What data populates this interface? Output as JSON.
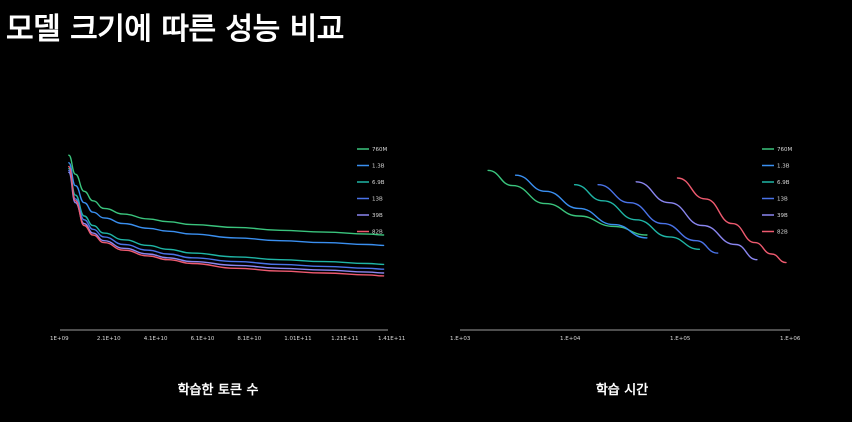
{
  "title": "모델 크기에 따른 성능 비교",
  "chart_data": [
    {
      "type": "line",
      "caption": "학습한 토큰 수",
      "xlabel": "학습한 토큰 수",
      "x_ticks": [
        "1E+09",
        "2.1E+10",
        "4.1E+10",
        "6.1E+10",
        "8.1E+10",
        "1.01E+11",
        "1.21E+11",
        "1.41E+11"
      ],
      "xlim": [
        1000000000,
        150000000000
      ],
      "x_scale": "linear",
      "legend_position": "right",
      "series": [
        {
          "name": "760M",
          "color": "#3ac47d",
          "x": [
            5000000000.0,
            8000000000.0,
            12000000000.0,
            16000000000.0,
            21000000000.0,
            30000000000.0,
            41000000000.0,
            50000000000.0,
            61000000000.0,
            81000000000.0,
            101000000000.0,
            121000000000.0,
            141000000000.0,
            148000000000.0
          ],
          "y": [
            0.92,
            0.82,
            0.73,
            0.68,
            0.64,
            0.61,
            0.585,
            0.57,
            0.555,
            0.54,
            0.525,
            0.515,
            0.505,
            0.5
          ]
        },
        {
          "name": "1.3B",
          "color": "#3a8ff0",
          "x": [
            5000000000.0,
            8000000000.0,
            12000000000.0,
            16000000000.0,
            21000000000.0,
            30000000000.0,
            41000000000.0,
            50000000000.0,
            61000000000.0,
            81000000000.0,
            101000000000.0,
            121000000000.0,
            141000000000.0,
            148000000000.0
          ],
          "y": [
            0.88,
            0.76,
            0.67,
            0.62,
            0.59,
            0.56,
            0.535,
            0.52,
            0.505,
            0.485,
            0.47,
            0.46,
            0.45,
            0.445
          ]
        },
        {
          "name": "6.9B",
          "color": "#1fb5a6",
          "x": [
            5000000000.0,
            8000000000.0,
            12000000000.0,
            16000000000.0,
            21000000000.0,
            30000000000.0,
            41000000000.0,
            50000000000.0,
            61000000000.0,
            81000000000.0,
            101000000000.0,
            121000000000.0,
            141000000000.0,
            148000000000.0
          ],
          "y": [
            0.85,
            0.71,
            0.6,
            0.55,
            0.51,
            0.475,
            0.445,
            0.425,
            0.405,
            0.385,
            0.37,
            0.36,
            0.35,
            0.345
          ]
        },
        {
          "name": "13B",
          "color": "#4a73e8",
          "x": [
            5000000000.0,
            8000000000.0,
            12000000000.0,
            16000000000.0,
            21000000000.0,
            30000000000.0,
            41000000000.0,
            50000000000.0,
            61000000000.0,
            81000000000.0,
            101000000000.0,
            121000000000.0,
            141000000000.0,
            148000000000.0
          ],
          "y": [
            0.84,
            0.69,
            0.58,
            0.53,
            0.49,
            0.45,
            0.42,
            0.4,
            0.38,
            0.36,
            0.345,
            0.335,
            0.325,
            0.32
          ]
        },
        {
          "name": "39B",
          "color": "#8a86f0",
          "x": [
            5000000000.0,
            8000000000.0,
            12000000000.0,
            16000000000.0,
            21000000000.0,
            30000000000.0,
            41000000000.0,
            50000000000.0,
            61000000000.0,
            81000000000.0,
            101000000000.0,
            121000000000.0,
            141000000000.0,
            148000000000.0
          ],
          "y": [
            0.83,
            0.67,
            0.56,
            0.51,
            0.47,
            0.43,
            0.4,
            0.38,
            0.36,
            0.34,
            0.325,
            0.315,
            0.305,
            0.3
          ]
        },
        {
          "name": "82B",
          "color": "#ee5a6f",
          "x": [
            5000000000.0,
            8000000000.0,
            12000000000.0,
            16000000000.0,
            21000000000.0,
            30000000000.0,
            41000000000.0,
            50000000000.0,
            61000000000.0,
            81000000000.0,
            101000000000.0,
            121000000000.0,
            141000000000.0,
            148000000000.0
          ],
          "y": [
            0.86,
            0.68,
            0.55,
            0.5,
            0.46,
            0.42,
            0.39,
            0.37,
            0.35,
            0.325,
            0.31,
            0.3,
            0.29,
            0.285
          ]
        }
      ]
    },
    {
      "type": "line",
      "caption": "학습 시간",
      "xlabel": "학습 시간",
      "x_ticks": [
        "1.E+03",
        "1.E+04",
        "1.E+05",
        "1.E+06"
      ],
      "xlim": [
        1000,
        1000000
      ],
      "x_scale": "log",
      "legend_position": "right",
      "series": [
        {
          "name": "760M",
          "color": "#3ac47d",
          "x": [
            1800,
            3000,
            6000,
            12000,
            25000,
            50000
          ],
          "y": [
            0.84,
            0.76,
            0.665,
            0.6,
            0.545,
            0.5
          ]
        },
        {
          "name": "1.3B",
          "color": "#3a8ff0",
          "x": [
            3200,
            6000,
            12000,
            25000,
            50000
          ],
          "y": [
            0.815,
            0.73,
            0.64,
            0.555,
            0.485
          ]
        },
        {
          "name": "6.9B",
          "color": "#1fb5a6",
          "x": [
            11000,
            20000,
            40000,
            80000,
            150000
          ],
          "y": [
            0.765,
            0.68,
            0.58,
            0.49,
            0.425
          ]
        },
        {
          "name": "13B",
          "color": "#4a73e8",
          "x": [
            18000,
            35000,
            70000,
            140000,
            220000
          ],
          "y": [
            0.765,
            0.67,
            0.56,
            0.47,
            0.405
          ]
        },
        {
          "name": "39B",
          "color": "#8a86f0",
          "x": [
            40000,
            80000,
            160000,
            320000,
            500000
          ],
          "y": [
            0.78,
            0.67,
            0.55,
            0.45,
            0.37
          ]
        },
        {
          "name": "82B",
          "color": "#ee5a6f",
          "x": [
            95000,
            170000,
            300000,
            480000,
            680000,
            920000
          ],
          "y": [
            0.8,
            0.69,
            0.56,
            0.46,
            0.4,
            0.355
          ]
        }
      ]
    }
  ]
}
